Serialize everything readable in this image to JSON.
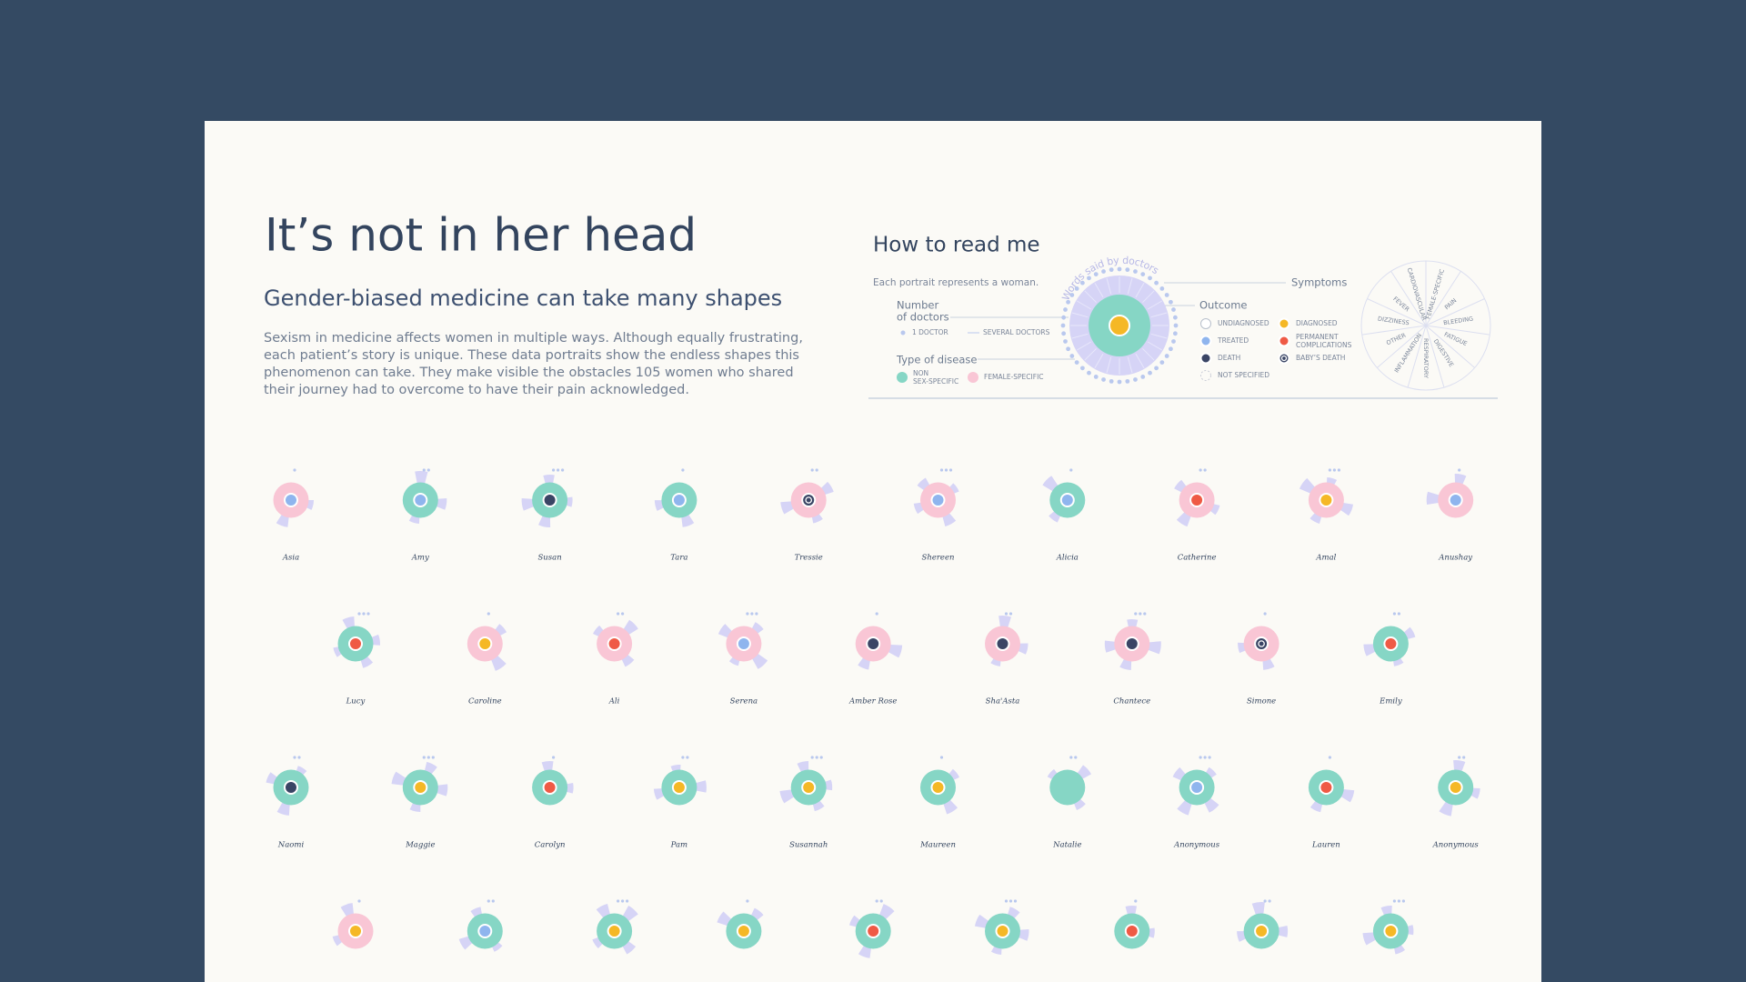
{
  "header": {
    "title": "It’s not in her head",
    "subtitle": "Gender-biased medicine can take many shapes",
    "intro": [
      "Sexism in medicine affects women in multiple ways. Although equally frustrating,",
      "each patient’s story is unique. These data portraits show the endless shapes this",
      "phenomenon can take. They make visible the obstacles 105 women who shared",
      "their journey had to overcome to have their pain acknowledged."
    ]
  },
  "legend": {
    "title": "How to read me",
    "note": "Each portrait represents a woman.",
    "words_label": "Words said by doctors",
    "symptoms_label": "Symptoms",
    "doctors_label": [
      "Number",
      "of doctors"
    ],
    "doctors": [
      "1 DOCTOR",
      "SEVERAL DOCTORS"
    ],
    "disease_label": "Type of disease",
    "disease_types": [
      {
        "key": "non-sex-specific",
        "label": [
          "NON",
          "SEX-SPECIFIC"
        ],
        "color": "#86d6c5"
      },
      {
        "key": "female-specific",
        "label": [
          "FEMALE-SPECIFIC"
        ],
        "color": "#f9c6d5"
      }
    ],
    "outcome_label": "Outcome",
    "outcomes": [
      {
        "key": "undiagnosed",
        "label": [
          "UNDIAGNOSED"
        ],
        "color": "#ffffff"
      },
      {
        "key": "diagnosed",
        "label": [
          "DIAGNOSED"
        ],
        "color": "#f5b826"
      },
      {
        "key": "treated",
        "label": [
          "TREATED"
        ],
        "color": "#8fb5ee"
      },
      {
        "key": "permanent",
        "label": [
          "PERMANENT",
          "COMPLICATIONS"
        ],
        "color": "#ef5a45"
      },
      {
        "key": "death",
        "label": [
          "DEATH"
        ],
        "color": "#3a4565"
      },
      {
        "key": "baby-death",
        "label": [
          "BABY’S DEATH"
        ],
        "color": "#3a4565"
      },
      {
        "key": "not-specified",
        "label": [
          "NOT SPECIFIED"
        ],
        "color": "none"
      }
    ],
    "symptoms": [
      "FEMALE-SPECIFIC",
      "PAIN",
      "BLEEDING",
      "FATIGUE",
      "DIGESTIVE",
      "RESPIRATORY",
      "INFLAMMATION",
      "OTHER",
      "DIZZINESS",
      "FEVER",
      "CARDIOVASCULAR"
    ]
  },
  "portraits": {
    "rows": [
      [
        {
          "name": "Asia",
          "disease": "female-specific",
          "outcome": "treated"
        },
        {
          "name": "Amy",
          "disease": "non-sex-specific",
          "outcome": "treated"
        },
        {
          "name": "Susan",
          "disease": "non-sex-specific",
          "outcome": "death"
        },
        {
          "name": "Tara",
          "disease": "non-sex-specific",
          "outcome": "treated"
        },
        {
          "name": "Tressie",
          "disease": "female-specific",
          "outcome": "baby-death"
        },
        {
          "name": "Shereen",
          "disease": "female-specific",
          "outcome": "treated"
        },
        {
          "name": "Alicia",
          "disease": "non-sex-specific",
          "outcome": "treated"
        },
        {
          "name": "Catherine",
          "disease": "female-specific",
          "outcome": "permanent"
        },
        {
          "name": "Amal",
          "disease": "female-specific",
          "outcome": "diagnosed"
        },
        {
          "name": "Anushay",
          "disease": "female-specific",
          "outcome": "treated"
        }
      ],
      [
        {
          "name": "Lucy",
          "disease": "non-sex-specific",
          "outcome": "permanent"
        },
        {
          "name": "Caroline",
          "disease": "female-specific",
          "outcome": "diagnosed"
        },
        {
          "name": "Ali",
          "disease": "female-specific",
          "outcome": "permanent"
        },
        {
          "name": "Serena",
          "disease": "female-specific",
          "outcome": "treated"
        },
        {
          "name": "Amber Rose",
          "disease": "female-specific",
          "outcome": "death"
        },
        {
          "name": "Sha'Asta",
          "disease": "female-specific",
          "outcome": "death"
        },
        {
          "name": "Chantece",
          "disease": "female-specific",
          "outcome": "death"
        },
        {
          "name": "Simone",
          "disease": "female-specific",
          "outcome": "baby-death"
        },
        {
          "name": "Emily",
          "disease": "non-sex-specific",
          "outcome": "permanent"
        }
      ],
      [
        {
          "name": "Naomi",
          "disease": "non-sex-specific",
          "outcome": "death"
        },
        {
          "name": "Maggie",
          "disease": "non-sex-specific",
          "outcome": "diagnosed"
        },
        {
          "name": "Carolyn",
          "disease": "non-sex-specific",
          "outcome": "permanent"
        },
        {
          "name": "Pam",
          "disease": "non-sex-specific",
          "outcome": "diagnosed"
        },
        {
          "name": "Susannah",
          "disease": "non-sex-specific",
          "outcome": "diagnosed"
        },
        {
          "name": "Maureen",
          "disease": "non-sex-specific",
          "outcome": "diagnosed"
        },
        {
          "name": "Natalie",
          "disease": "non-sex-specific",
          "outcome": "not-specified"
        },
        {
          "name": "Anonymous",
          "disease": "non-sex-specific",
          "outcome": "treated"
        },
        {
          "name": "Lauren",
          "disease": "non-sex-specific",
          "outcome": "permanent"
        },
        {
          "name": "Anonymous",
          "disease": "non-sex-specific",
          "outcome": "diagnosed"
        }
      ],
      [
        {
          "name": null,
          "disease": "female-specific",
          "outcome": "diagnosed"
        },
        {
          "name": null,
          "disease": "non-sex-specific",
          "outcome": "treated"
        },
        {
          "name": null,
          "disease": "non-sex-specific",
          "outcome": "diagnosed"
        },
        {
          "name": null,
          "disease": "non-sex-specific",
          "outcome": "diagnosed"
        },
        {
          "name": null,
          "disease": "non-sex-specific",
          "outcome": "permanent"
        },
        {
          "name": null,
          "disease": "non-sex-specific",
          "outcome": "diagnosed"
        },
        {
          "name": null,
          "disease": "non-sex-specific",
          "outcome": "permanent"
        },
        {
          "name": null,
          "disease": "non-sex-specific",
          "outcome": "diagnosed"
        },
        {
          "name": null,
          "disease": "non-sex-specific",
          "outcome": "diagnosed"
        }
      ]
    ]
  }
}
